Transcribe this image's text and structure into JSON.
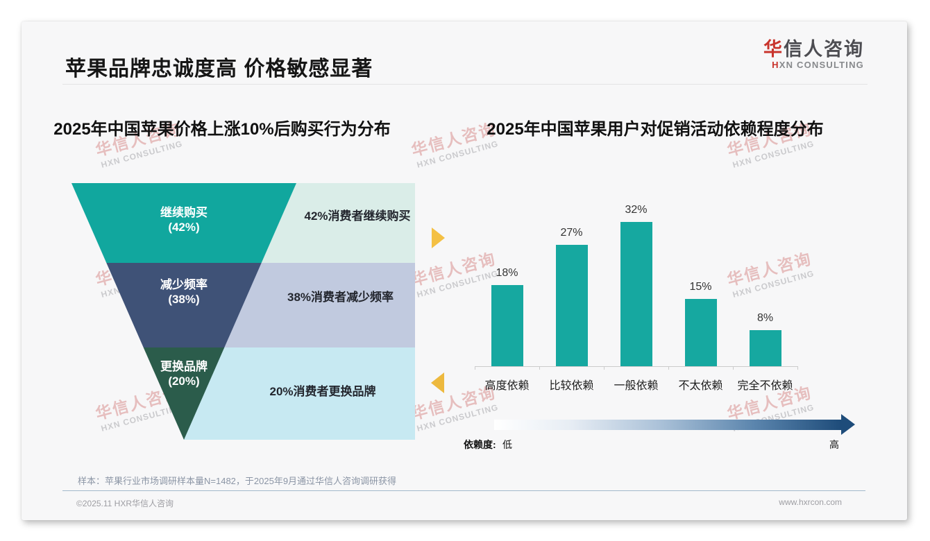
{
  "header": {
    "title": "苹果品牌忠诚度高 价格敏感显著",
    "logo": {
      "cn_first": "华",
      "cn_rest": "信人咨询",
      "en_first": "H",
      "en_rest": "XN CONSULTING"
    }
  },
  "watermark": {
    "cn": "华信人咨询",
    "en": "HXN CONSULTING"
  },
  "chart_data": [
    {
      "type": "funnel",
      "title": "2025年中国苹果价格上涨10%后购买行为分布",
      "segments": [
        {
          "stage": "继续购买",
          "value_pct": 42,
          "inner_label": "继续购买\n(42%)",
          "side_text": "42%消费者继续购买",
          "color": "#11a79e",
          "side_bg": "#daede8"
        },
        {
          "stage": "减少频率",
          "value_pct": 38,
          "inner_label": "减少频率\n(38%)",
          "side_text": "38%消费者减少频率",
          "color": "#3f5277",
          "side_bg": "#c1cadf"
        },
        {
          "stage": "更换品牌",
          "value_pct": 20,
          "inner_label": "更换品牌\n(20%)",
          "side_text": "20%消费者更换品牌",
          "color": "#2b5c4b",
          "side_bg": "#c7e9f2"
        }
      ]
    },
    {
      "type": "bar",
      "title": "2025年中国苹果用户对促销活动依赖程度分布",
      "categories": [
        "高度依赖",
        "比较依赖",
        "一般依赖",
        "不太依赖",
        "完全不依赖"
      ],
      "values": [
        18,
        27,
        32,
        15,
        8
      ],
      "value_labels": [
        "18%",
        "27%",
        "32%",
        "15%",
        "8%"
      ],
      "unit": "%",
      "bar_color": "#16a8a0",
      "grid": false,
      "ylim": [
        0,
        36
      ],
      "dependence_axis": {
        "label": "依赖度:",
        "low": "低",
        "high": "高",
        "gradient_end_color": "#1e4c7a"
      }
    }
  ],
  "accents": {
    "marker_right": "#f4c044",
    "marker_left": "#edb93e",
    "logo_red": "#c8342c"
  },
  "footnote": "样本：苹果行业市场调研样本量N=1482，于2025年9月通过华信人咨询调研获得",
  "footer": {
    "left": "©2025.11 HXR华信人咨询",
    "right": "www.hxrcon.com"
  }
}
